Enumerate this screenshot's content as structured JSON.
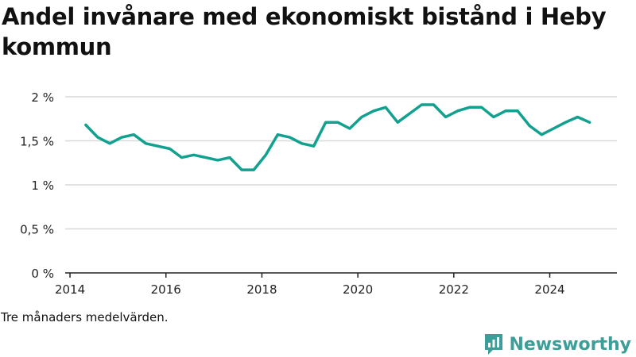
{
  "title": "Andel invånare med ekonomiskt bistånd i Heby kommun",
  "note": "Tre månaders medelvärden.",
  "brand": {
    "name": "Newsworthy",
    "color": "#3c9e98",
    "icon": "newsworthy-logo-icon"
  },
  "colors": {
    "line": "#12a08f",
    "grid": "#d9d9d9",
    "axis": "#222222"
  },
  "chart_data": {
    "type": "line",
    "title": "Andel invånare med ekonomiskt bistånd i Heby kommun",
    "xlabel": "",
    "ylabel": "",
    "ylim": [
      0,
      2
    ],
    "xlim": [
      2013.9,
      2025.4
    ],
    "grid": true,
    "yticks": [
      {
        "value": 0,
        "label": "0 %"
      },
      {
        "value": 0.5,
        "label": "0,5 %"
      },
      {
        "value": 1,
        "label": "1 %"
      },
      {
        "value": 1.5,
        "label": "1,5 %"
      },
      {
        "value": 2,
        "label": "2 %"
      }
    ],
    "xticks": [
      {
        "value": 2014,
        "label": "2014"
      },
      {
        "value": 2016,
        "label": "2016"
      },
      {
        "value": 2018,
        "label": "2018"
      },
      {
        "value": 2020,
        "label": "2020"
      },
      {
        "value": 2022,
        "label": "2022"
      },
      {
        "value": 2024,
        "label": "2024"
      }
    ],
    "series": [
      {
        "x": [
          2014.33,
          2014.58,
          2014.83,
          2015.08,
          2015.33,
          2015.58,
          2015.83,
          2016.08,
          2016.33,
          2016.58,
          2016.83,
          2017.08,
          2017.33,
          2017.58,
          2017.83,
          2018.08,
          2018.33,
          2018.58,
          2018.83,
          2019.08,
          2019.33,
          2019.58,
          2019.83,
          2020.08,
          2020.33,
          2020.58,
          2020.83,
          2021.08,
          2021.33,
          2021.58,
          2021.83,
          2022.08,
          2022.33,
          2022.58,
          2022.83,
          2023.08,
          2023.33,
          2023.58,
          2023.83,
          2024.08,
          2024.33,
          2024.58,
          2024.83
        ],
        "values": [
          1.68,
          1.54,
          1.47,
          1.54,
          1.57,
          1.47,
          1.44,
          1.41,
          1.31,
          1.34,
          1.31,
          1.28,
          1.31,
          1.17,
          1.17,
          1.34,
          1.57,
          1.54,
          1.47,
          1.44,
          1.71,
          1.71,
          1.64,
          1.77,
          1.84,
          1.88,
          1.71,
          1.81,
          1.91,
          1.91,
          1.77,
          1.84,
          1.88,
          1.88,
          1.77,
          1.84,
          1.84,
          1.67,
          1.57,
          1.64,
          1.71,
          1.77,
          1.71
        ]
      }
    ]
  }
}
